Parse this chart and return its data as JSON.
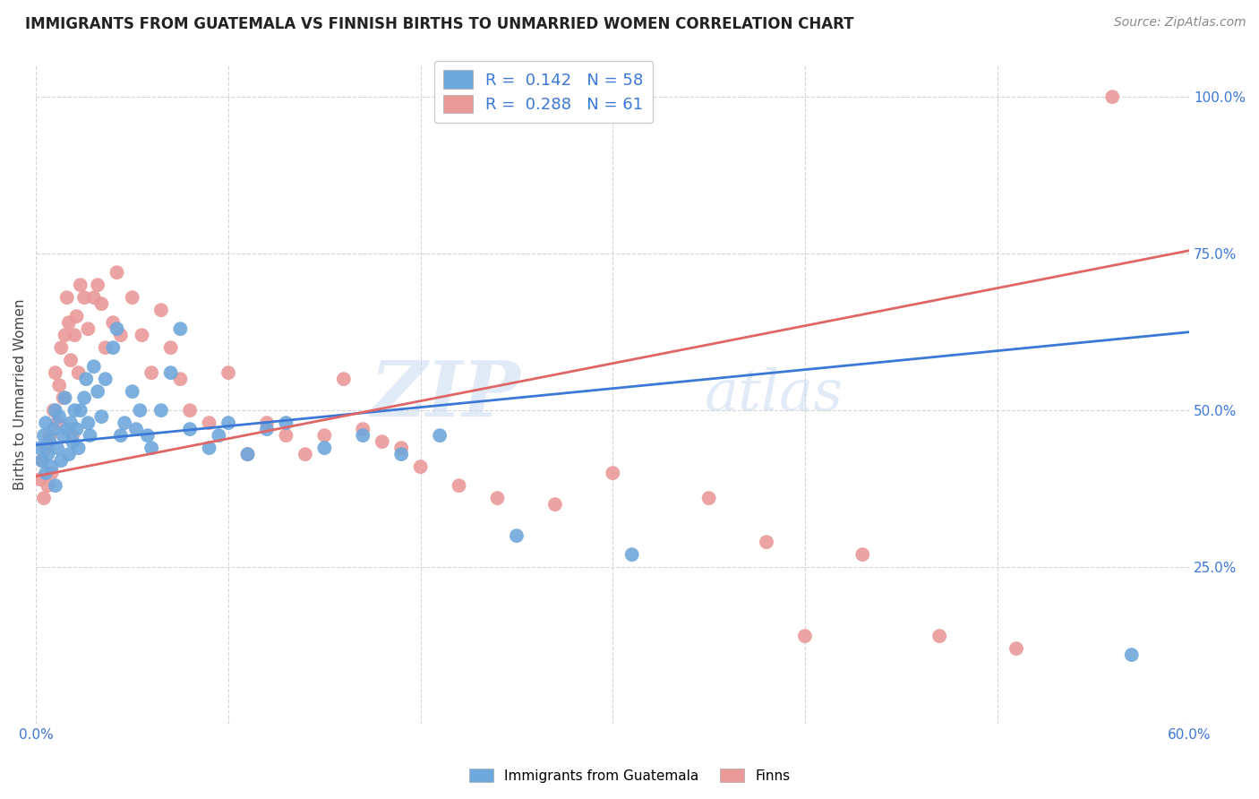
{
  "title": "IMMIGRANTS FROM GUATEMALA VS FINNISH BIRTHS TO UNMARRIED WOMEN CORRELATION CHART",
  "source": "Source: ZipAtlas.com",
  "ylabel": "Births to Unmarried Women",
  "xlim": [
    0.0,
    0.6
  ],
  "ylim": [
    0.0,
    1.05
  ],
  "x_ticks": [
    0.0,
    0.1,
    0.2,
    0.3,
    0.4,
    0.5,
    0.6
  ],
  "x_tick_labels": [
    "0.0%",
    "",
    "",
    "",
    "",
    "",
    "60.0%"
  ],
  "y_ticks": [
    0.0,
    0.25,
    0.5,
    0.75,
    1.0
  ],
  "y_tick_labels": [
    "",
    "25.0%",
    "50.0%",
    "75.0%",
    "100.0%"
  ],
  "blue_color": "#6fa8dc",
  "pink_color": "#ea9999",
  "blue_line_color": "#3c78d8",
  "pink_line_color": "#e06666",
  "watermark_color": "#c5d9f1",
  "legend_blue_r": "0.142",
  "legend_blue_n": "58",
  "legend_pink_r": "0.288",
  "legend_pink_n": "61",
  "blue_x": [
    0.002,
    0.003,
    0.004,
    0.005,
    0.005,
    0.006,
    0.007,
    0.008,
    0.009,
    0.01,
    0.01,
    0.011,
    0.012,
    0.013,
    0.014,
    0.015,
    0.016,
    0.017,
    0.018,
    0.019,
    0.02,
    0.021,
    0.022,
    0.023,
    0.025,
    0.026,
    0.027,
    0.028,
    0.03,
    0.032,
    0.034,
    0.036,
    0.04,
    0.042,
    0.044,
    0.046,
    0.05,
    0.052,
    0.054,
    0.058,
    0.06,
    0.065,
    0.07,
    0.075,
    0.08,
    0.09,
    0.095,
    0.1,
    0.11,
    0.12,
    0.13,
    0.15,
    0.17,
    0.19,
    0.21,
    0.25,
    0.31,
    0.57
  ],
  "blue_y": [
    0.44,
    0.42,
    0.46,
    0.4,
    0.48,
    0.43,
    0.45,
    0.41,
    0.47,
    0.5,
    0.38,
    0.44,
    0.49,
    0.42,
    0.46,
    0.52,
    0.47,
    0.43,
    0.48,
    0.45,
    0.5,
    0.47,
    0.44,
    0.5,
    0.52,
    0.55,
    0.48,
    0.46,
    0.57,
    0.53,
    0.49,
    0.55,
    0.6,
    0.63,
    0.46,
    0.48,
    0.53,
    0.47,
    0.5,
    0.46,
    0.44,
    0.5,
    0.56,
    0.63,
    0.47,
    0.44,
    0.46,
    0.48,
    0.43,
    0.47,
    0.48,
    0.44,
    0.46,
    0.43,
    0.46,
    0.3,
    0.27,
    0.11
  ],
  "pink_x": [
    0.002,
    0.003,
    0.004,
    0.005,
    0.006,
    0.007,
    0.008,
    0.009,
    0.01,
    0.011,
    0.012,
    0.013,
    0.014,
    0.015,
    0.016,
    0.017,
    0.018,
    0.019,
    0.02,
    0.021,
    0.022,
    0.023,
    0.025,
    0.027,
    0.03,
    0.032,
    0.034,
    0.036,
    0.04,
    0.042,
    0.044,
    0.05,
    0.055,
    0.06,
    0.065,
    0.07,
    0.075,
    0.08,
    0.09,
    0.1,
    0.11,
    0.12,
    0.13,
    0.14,
    0.15,
    0.16,
    0.17,
    0.18,
    0.19,
    0.2,
    0.22,
    0.24,
    0.27,
    0.3,
    0.35,
    0.38,
    0.4,
    0.43,
    0.47,
    0.51,
    0.56
  ],
  "pink_y": [
    0.39,
    0.42,
    0.36,
    0.44,
    0.38,
    0.46,
    0.4,
    0.5,
    0.56,
    0.48,
    0.54,
    0.6,
    0.52,
    0.62,
    0.68,
    0.64,
    0.58,
    0.46,
    0.62,
    0.65,
    0.56,
    0.7,
    0.68,
    0.63,
    0.68,
    0.7,
    0.67,
    0.6,
    0.64,
    0.72,
    0.62,
    0.68,
    0.62,
    0.56,
    0.66,
    0.6,
    0.55,
    0.5,
    0.48,
    0.56,
    0.43,
    0.48,
    0.46,
    0.43,
    0.46,
    0.55,
    0.47,
    0.45,
    0.44,
    0.41,
    0.38,
    0.36,
    0.35,
    0.4,
    0.36,
    0.29,
    0.14,
    0.27,
    0.14,
    0.12,
    1.0
  ],
  "blue_line_x0": 0.0,
  "blue_line_y0": 0.445,
  "blue_line_x1": 0.6,
  "blue_line_y1": 0.625,
  "pink_line_x0": 0.0,
  "pink_line_y0": 0.395,
  "pink_line_x1": 0.6,
  "pink_line_y1": 0.755,
  "title_fontsize": 12,
  "source_fontsize": 10,
  "axis_label_fontsize": 11,
  "tick_fontsize": 11,
  "legend_fontsize": 13
}
